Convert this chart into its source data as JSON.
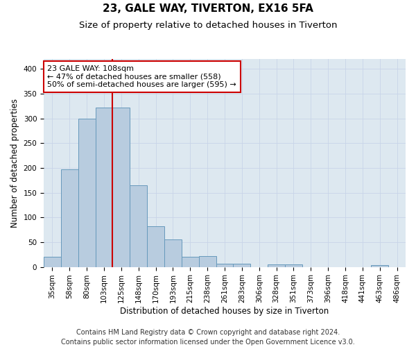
{
  "title_line1": "23, GALE WAY, TIVERTON, EX16 5FA",
  "title_line2": "Size of property relative to detached houses in Tiverton",
  "xlabel": "Distribution of detached houses by size in Tiverton",
  "ylabel": "Number of detached properties",
  "categories": [
    "35sqm",
    "58sqm",
    "80sqm",
    "103sqm",
    "125sqm",
    "148sqm",
    "170sqm",
    "193sqm",
    "215sqm",
    "238sqm",
    "261sqm",
    "283sqm",
    "306sqm",
    "328sqm",
    "351sqm",
    "373sqm",
    "396sqm",
    "418sqm",
    "441sqm",
    "463sqm",
    "486sqm"
  ],
  "values": [
    20,
    197,
    299,
    322,
    322,
    165,
    82,
    55,
    21,
    22,
    7,
    6,
    0,
    5,
    5,
    0,
    0,
    0,
    0,
    4,
    0
  ],
  "bar_color": "#b8ccdf",
  "bar_edge_color": "#6699bb",
  "marker_index": 3,
  "marker_color": "#cc0000",
  "annotation_text": "23 GALE WAY: 108sqm\n← 47% of detached houses are smaller (558)\n50% of semi-detached houses are larger (595) →",
  "annotation_box_facecolor": "#ffffff",
  "annotation_box_edgecolor": "#cc0000",
  "ylim": [
    0,
    420
  ],
  "yticks": [
    0,
    50,
    100,
    150,
    200,
    250,
    300,
    350,
    400
  ],
  "grid_color": "#c8d4e8",
  "background_color": "#dde8f0",
  "footer_line1": "Contains HM Land Registry data © Crown copyright and database right 2024.",
  "footer_line2": "Contains public sector information licensed under the Open Government Licence v3.0.",
  "title_fontsize": 11,
  "subtitle_fontsize": 9.5,
  "axis_label_fontsize": 8.5,
  "tick_fontsize": 7.5,
  "annotation_fontsize": 8,
  "footer_fontsize": 7
}
